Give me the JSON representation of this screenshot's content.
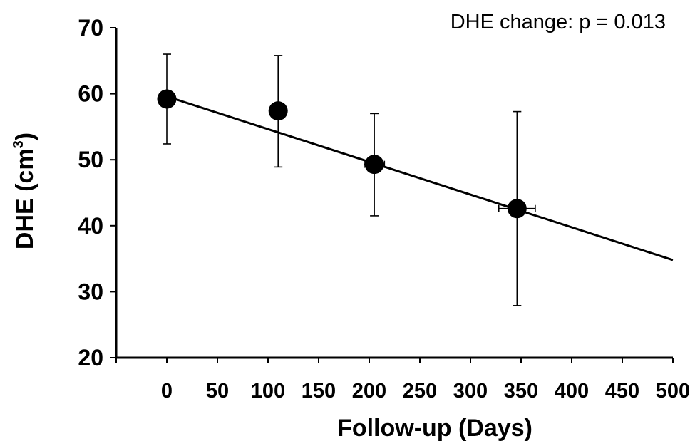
{
  "chart_data": {
    "type": "scatter",
    "title": "",
    "xlabel": "Follow-up (Days)",
    "ylabel": {
      "main": "DHE (cm",
      "sup": "3",
      "end": ")"
    },
    "annotation": "DHE change: p = 0.013",
    "xlim": [
      -50,
      500
    ],
    "ylim": [
      20,
      70
    ],
    "xticks": [
      0,
      50,
      100,
      150,
      200,
      250,
      300,
      350,
      400,
      450,
      500
    ],
    "yticks": [
      20,
      30,
      40,
      50,
      60,
      70
    ],
    "grid": false,
    "points": [
      {
        "x": 0,
        "y": 59.2,
        "y_err_low": 52.4,
        "y_err_high": 66.0,
        "x_err": 0
      },
      {
        "x": 110,
        "y": 57.4,
        "y_err_low": 48.9,
        "y_err_high": 65.8,
        "x_err": 0
      },
      {
        "x": 205,
        "y": 49.3,
        "y_err_low": 41.5,
        "y_err_high": 57.0,
        "x_err": 10
      },
      {
        "x": 346,
        "y": 42.6,
        "y_err_low": 27.9,
        "y_err_high": 57.3,
        "x_err": 18
      }
    ],
    "trendline": {
      "x": [
        0,
        500
      ],
      "y": [
        59.6,
        34.8
      ]
    }
  }
}
